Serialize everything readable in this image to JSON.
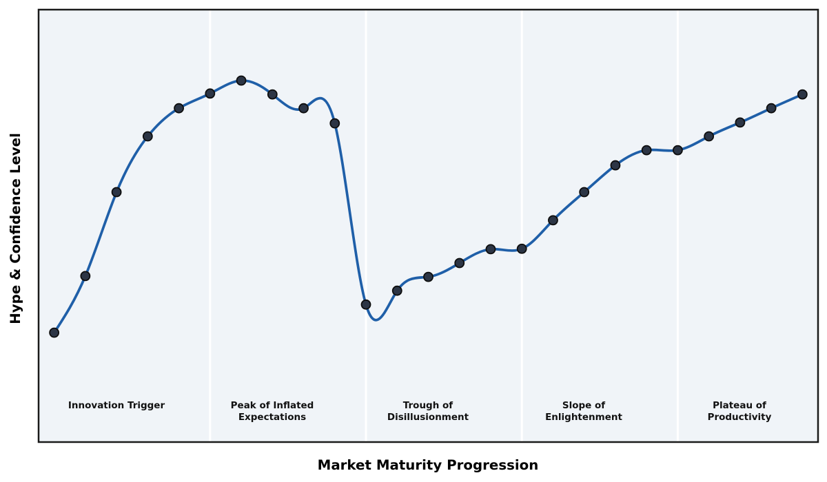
{
  "chart_data": {
    "type": "line",
    "title": "",
    "xlabel": "Market Maturity Progression",
    "ylabel": "Hype & Confidence Level",
    "x": [
      0,
      1,
      2,
      3,
      4,
      5,
      6,
      7,
      8,
      9,
      10,
      11,
      12,
      13,
      14,
      15,
      16,
      17,
      18,
      19,
      20,
      21,
      22,
      23,
      24
    ],
    "values": [
      25.3,
      38.4,
      57.8,
      70.7,
      77.2,
      80.6,
      83.6,
      80.4,
      77.2,
      73.7,
      31.8,
      35.0,
      38.2,
      41.4,
      44.6,
      44.7,
      51.3,
      57.8,
      64.0,
      67.5,
      67.5,
      70.7,
      73.9,
      77.2,
      80.4
    ],
    "xlim": [
      -0.5,
      24.5
    ],
    "ylim": [
      0,
      100
    ],
    "phase_boundaries_x": [
      5,
      10,
      15,
      20
    ],
    "phases": [
      {
        "label": "Innovation Trigger",
        "center_x": 2
      },
      {
        "label": "Peak of Inflated\nExpectations",
        "center_x": 7
      },
      {
        "label": "Trough of\nDisillusionment",
        "center_x": 12
      },
      {
        "label": "Slope of\nEnlightenment",
        "center_x": 17
      },
      {
        "label": "Plateau of\nProductivity",
        "center_x": 22
      }
    ],
    "styles": {
      "line_color": "#1f5fa8",
      "marker_fill": "#2c3545",
      "marker_edge": "#0d0d0d",
      "plot_bg": "#f0f4f8",
      "separator_color": "#ffffff",
      "border_color": "#1a1a1a"
    },
    "grid": false,
    "legend": false
  }
}
